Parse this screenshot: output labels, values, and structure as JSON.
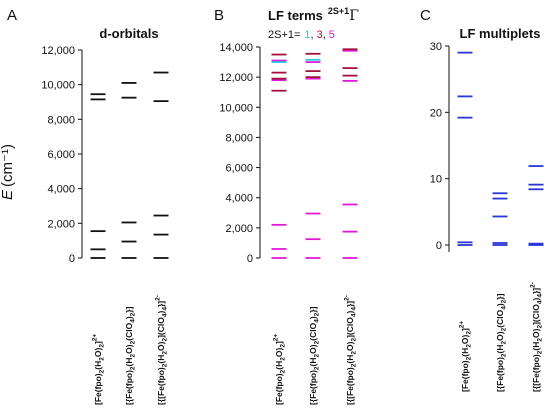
{
  "chart_data": [
    {
      "type": "energy-level-diagram",
      "panel_label": "A",
      "title": "d-orbitals",
      "ylabel": "E",
      "ylabel_unit": "(cm⁻¹)",
      "ylim": [
        0,
        12000
      ],
      "yticks": [
        "0",
        "2,000",
        "4,000",
        "6,000",
        "8,000",
        "10,000",
        "12,000"
      ],
      "ytick_values": [
        0,
        2000,
        4000,
        6000,
        8000,
        10000,
        12000
      ],
      "categories": [
        {
          "pre": "[Fe(fpo)",
          "s1": "2",
          "mid": "(H",
          "s2": "2",
          "mid2": "O)",
          "s3": "2",
          "end": "]",
          "sup": "2+"
        },
        {
          "pre": "[{Fe(fpo)",
          "s1": "2",
          "mid": "(H",
          "s2": "2",
          "mid2": "O)",
          "s3": "2",
          "end": "(ClO",
          "s4": "4",
          "end2": ")",
          "s5": "2",
          "end3": "}]",
          "sup": ""
        },
        {
          "pre": "[{[Fe(fpo)",
          "s1": "2",
          "mid": "(H",
          "s2": "2",
          "mid2": "O)",
          "s3": "2",
          "end": "](ClO",
          "s4": "4",
          "end2": ")",
          "s5": "4",
          "end3": "}]",
          "sup": "2-"
        }
      ],
      "series": [
        {
          "color": "#111111",
          "levels": [
            [
              0,
              500,
              1550,
              9150,
              9450
            ],
            [
              0,
              950,
              2050,
              9250,
              10100
            ],
            [
              0,
              1350,
              2450,
              9050,
              10700
            ]
          ]
        }
      ]
    },
    {
      "type": "energy-level-diagram",
      "panel_label": "B",
      "title": "LF terms",
      "title_sup": "2S+1",
      "title_symbol": "Γ",
      "legend_prefix": "2S+1=",
      "legend_items": [
        {
          "label": "1",
          "color": "#27c8e0"
        },
        {
          "label": "3",
          "color": "#a3123c"
        },
        {
          "label": "5",
          "color": "#e21ad8"
        }
      ],
      "legend_sep": ",",
      "ylim": [
        0,
        14000
      ],
      "yticks": [
        "0",
        "2,000",
        "4,000",
        "6,000",
        "8,000",
        "10,000",
        "12,000",
        "14,000"
      ],
      "ytick_values": [
        0,
        2000,
        4000,
        6000,
        8000,
        10000,
        12000,
        14000
      ],
      "series": [
        {
          "spin": 5,
          "color": "#e21ad8",
          "levels": [
            [
              0,
              600,
              2200,
              11800,
              13100
            ],
            [
              0,
              1250,
              2950,
              11900,
              13000
            ],
            [
              0,
              1750,
              3550,
              11750,
              13750
            ]
          ]
        },
        {
          "spin": 3,
          "color": "#a3123c",
          "levels": [
            [
              11100,
              11900,
              12300,
              13500
            ],
            [
              12000,
              12400,
              13550
            ],
            [
              12100,
              12600,
              13850
            ]
          ]
        },
        {
          "spin": 1,
          "color": "#27c8e0",
          "levels": [
            [
              13000
            ],
            [
              13150
            ],
            []
          ]
        }
      ]
    },
    {
      "type": "energy-level-diagram",
      "panel_label": "C",
      "title": "LF multiplets",
      "ylim": [
        0,
        30
      ],
      "yticks": [
        "0",
        "10",
        "20",
        "30"
      ],
      "ytick_values": [
        0,
        10,
        20,
        30
      ],
      "series": [
        {
          "color": "#2a36d6",
          "levels": [
            [
              0,
              0.4,
              19.2,
              22.4,
              29.0
            ],
            [
              0,
              0.3,
              4.3,
              7.0,
              7.8
            ],
            [
              0,
              0.2,
              8.4,
              9.1,
              11.9
            ]
          ]
        }
      ]
    }
  ]
}
